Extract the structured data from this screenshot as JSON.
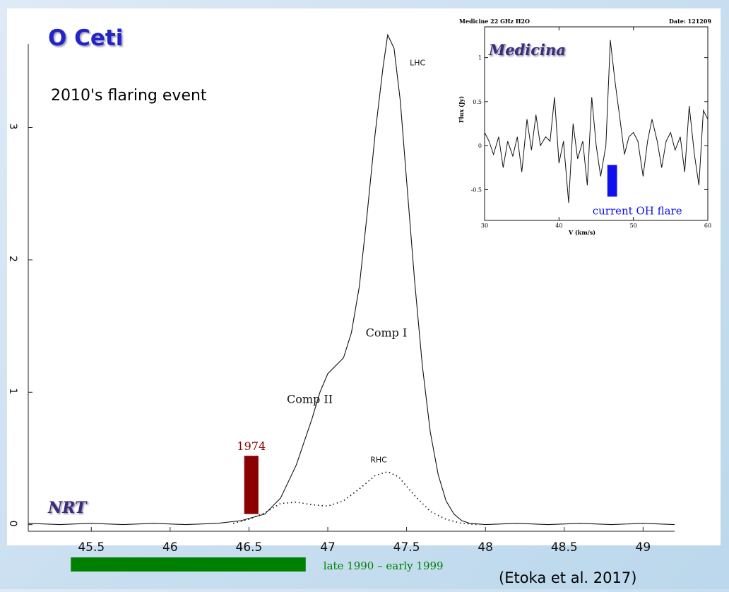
{
  "slide": {
    "title": "O Ceti",
    "subtitle": "2010's flaring event",
    "citation": "(Etoka et al. 2017)"
  },
  "colors": {
    "title": "#2323c8",
    "bar_1974": "#8b0000",
    "bar_late1990": "#008000",
    "bar_current": "#1010ee",
    "logo_text": "#3c2a78"
  },
  "chart_data": [
    {
      "type": "line",
      "logo": "NRT",
      "x_ticks": [
        45.5,
        46,
        46.5,
        47,
        47.5,
        48,
        48.5,
        49
      ],
      "y_ticks": [
        0,
        1,
        2,
        3
      ],
      "xlim": [
        45.1,
        49.2
      ],
      "ylim": [
        -0.05,
        3.75
      ],
      "series": [
        {
          "name": "LHC",
          "style": "solid",
          "x": [
            45.1,
            45.3,
            45.5,
            45.7,
            45.9,
            46.1,
            46.3,
            46.45,
            46.6,
            46.7,
            46.8,
            46.9,
            46.95,
            47.0,
            47.05,
            47.1,
            47.15,
            47.2,
            47.25,
            47.3,
            47.35,
            47.38,
            47.42,
            47.46,
            47.5,
            47.55,
            47.6,
            47.65,
            47.7,
            47.75,
            47.8,
            47.85,
            47.9,
            48.0,
            48.2,
            48.4,
            48.6,
            48.8,
            49.0,
            49.2
          ],
          "y": [
            0.01,
            0.0,
            0.01,
            0.0,
            0.01,
            0.0,
            0.01,
            0.03,
            0.08,
            0.2,
            0.45,
            0.8,
            1.0,
            1.14,
            1.2,
            1.26,
            1.45,
            1.8,
            2.35,
            2.95,
            3.45,
            3.7,
            3.6,
            3.2,
            2.6,
            1.85,
            1.2,
            0.7,
            0.38,
            0.18,
            0.08,
            0.03,
            0.01,
            0.0,
            0.01,
            0.0,
            0.01,
            0.0,
            0.01,
            0.0
          ]
        },
        {
          "name": "RHC",
          "style": "dotted",
          "x": [
            46.4,
            46.5,
            46.6,
            46.7,
            46.8,
            46.9,
            47.0,
            47.1,
            47.2,
            47.3,
            47.38,
            47.45,
            47.55,
            47.65,
            47.75,
            47.85,
            47.95
          ],
          "y": [
            0.01,
            0.04,
            0.09,
            0.16,
            0.17,
            0.15,
            0.14,
            0.18,
            0.27,
            0.37,
            0.4,
            0.36,
            0.22,
            0.1,
            0.04,
            0.01,
            0.0
          ]
        }
      ],
      "labels": {
        "lhc": "LHC",
        "rhc": "RHC",
        "comp1": "Comp I",
        "comp2": "Comp II"
      },
      "annotations": [
        {
          "label": "1974",
          "x_range": [
            46.47,
            46.56
          ],
          "y_range": [
            0.08,
            0.52
          ],
          "color": "#8b0000"
        },
        {
          "label": "late 1990 – early 1999",
          "x_range": [
            45.37,
            46.86
          ],
          "band": "below-axis",
          "color": "#008000"
        }
      ]
    },
    {
      "type": "line",
      "title": "Medicine 22 GHz H2O",
      "date_label": "Date: 121209",
      "logo": "Medicina",
      "xlabel": "V (km/s)",
      "ylabel": "Flux (Jy)",
      "x_ticks": [
        30,
        40,
        50,
        60
      ],
      "y_ticks": [
        -0.5,
        0,
        0.5,
        1
      ],
      "xlim": [
        30,
        60
      ],
      "ylim": [
        -0.85,
        1.35
      ],
      "annotation": {
        "label": "current OH flare",
        "x_range": [
          46.5,
          47.8
        ],
        "y_range": [
          -0.58,
          -0.22
        ],
        "color": "#1010ee"
      },
      "series": [
        {
          "name": "",
          "x": [
            30,
            30.6,
            31.2,
            31.9,
            32.5,
            33.1,
            33.8,
            34.4,
            35.0,
            35.7,
            36.3,
            36.9,
            37.5,
            38.2,
            38.8,
            39.4,
            40.0,
            40.6,
            41.3,
            41.9,
            42.5,
            43.2,
            43.8,
            44.4,
            45.0,
            45.6,
            46.3,
            46.9,
            47.5,
            48.2,
            48.8,
            49.4,
            50.0,
            50.6,
            51.3,
            51.9,
            52.5,
            53.2,
            53.8,
            54.4,
            55.0,
            55.6,
            56.3,
            56.9,
            57.5,
            58.2,
            58.8,
            59.4,
            60.0
          ],
          "y": [
            0.15,
            0.05,
            -0.1,
            0.1,
            -0.25,
            0.05,
            -0.12,
            0.1,
            -0.3,
            0.3,
            -0.05,
            0.35,
            0.0,
            0.1,
            0.05,
            0.55,
            -0.2,
            0.05,
            -0.65,
            0.25,
            -0.15,
            0.05,
            -0.45,
            0.55,
            0.0,
            -0.35,
            0.0,
            1.2,
            0.75,
            0.3,
            -0.1,
            0.1,
            0.15,
            0.05,
            -0.35,
            0.05,
            0.3,
            0.05,
            -0.25,
            0.05,
            0.15,
            -0.05,
            0.1,
            -0.3,
            0.45,
            -0.1,
            -0.45,
            0.4,
            0.3
          ]
        }
      ]
    }
  ]
}
